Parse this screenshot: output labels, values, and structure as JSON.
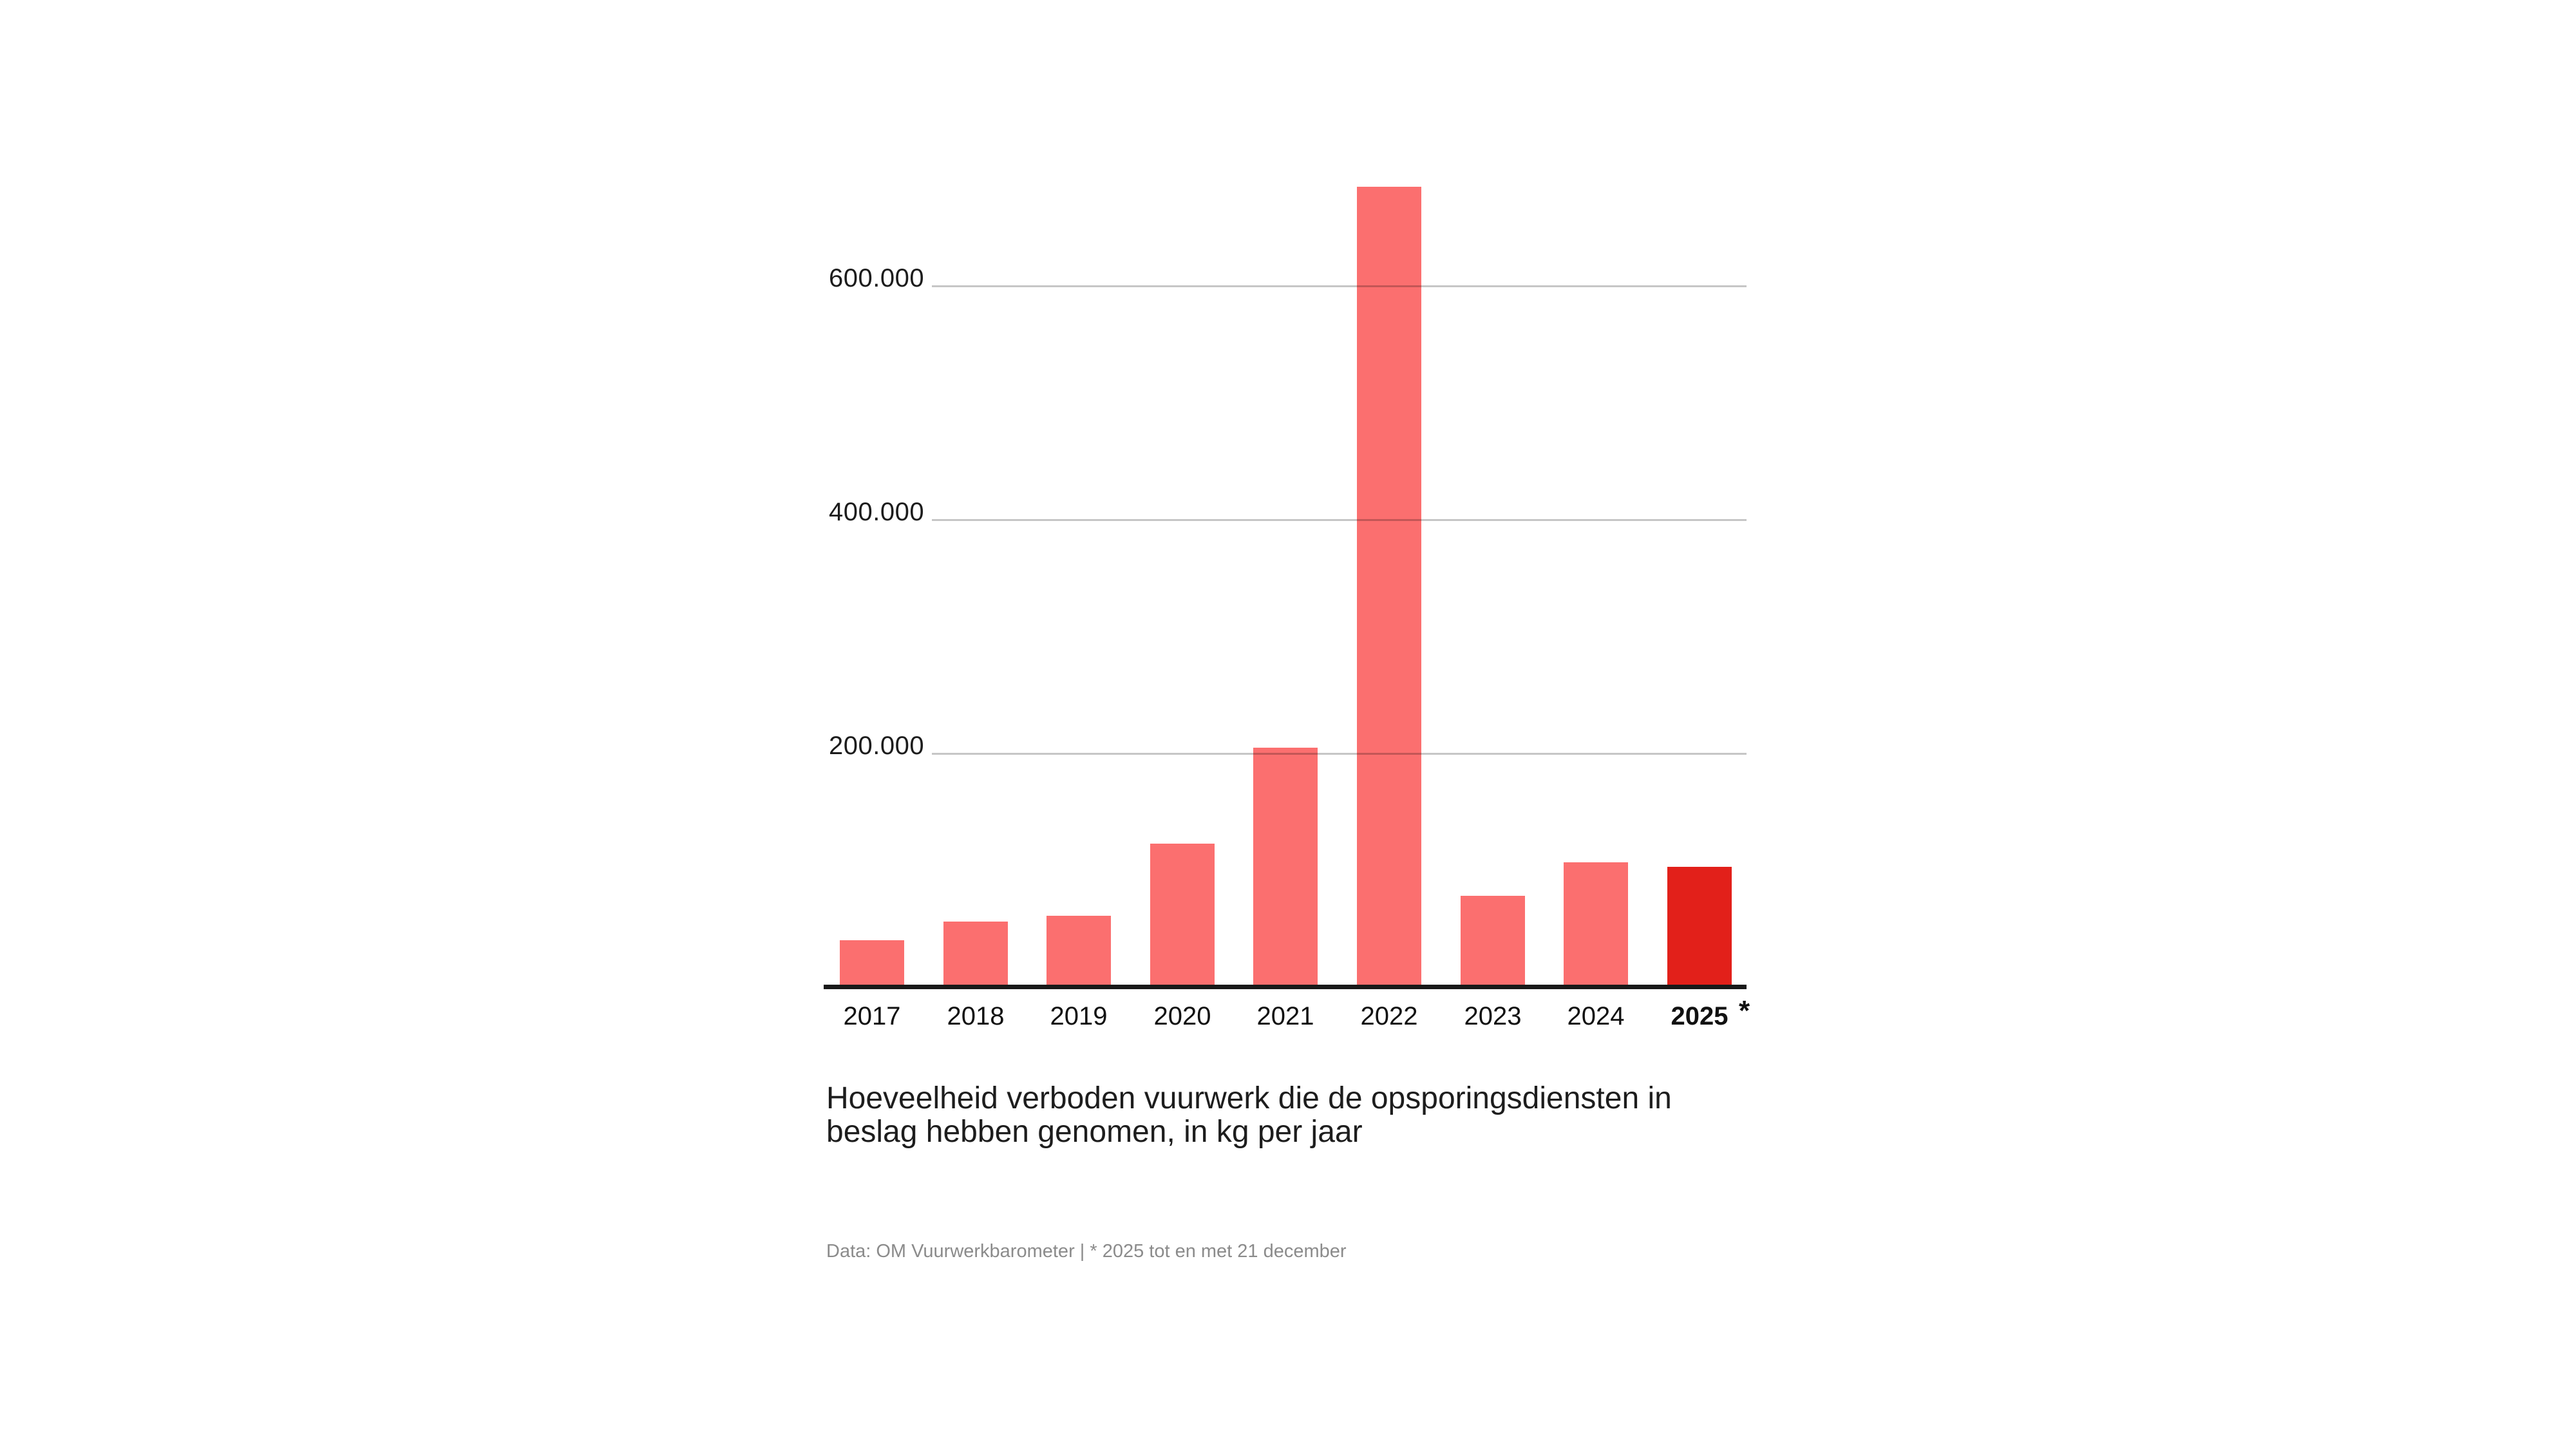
{
  "title": "Hoeveelheid verboden vuurwerk die de opsporingsdiensten in\nbeslag hebben genomen, in kg per jaar",
  "source_note": "Data: OM Vuurwerkbarometer | * 2025 tot en met 21 december",
  "chart_data": {
    "type": "bar",
    "categories": [
      "2017",
      "2018",
      "2019",
      "2020",
      "2021",
      "2022",
      "2023",
      "2024",
      "2025"
    ],
    "values": [
      40000,
      56000,
      61000,
      123000,
      205000,
      685000,
      78000,
      107000,
      103000
    ],
    "unit": "kg per jaar",
    "ylim": [
      0,
      700000
    ],
    "yticks": [
      {
        "value": 200000,
        "label": "200.000"
      },
      {
        "value": 400000,
        "label": "400.000"
      },
      {
        "value": 600000,
        "label": "600.000"
      }
    ],
    "grid": true,
    "legend": "none",
    "bar_color": "#fb6f6f",
    "highlight_color": "#e2201a",
    "highlight_category": "2025",
    "highlight_note_marker": "*"
  }
}
